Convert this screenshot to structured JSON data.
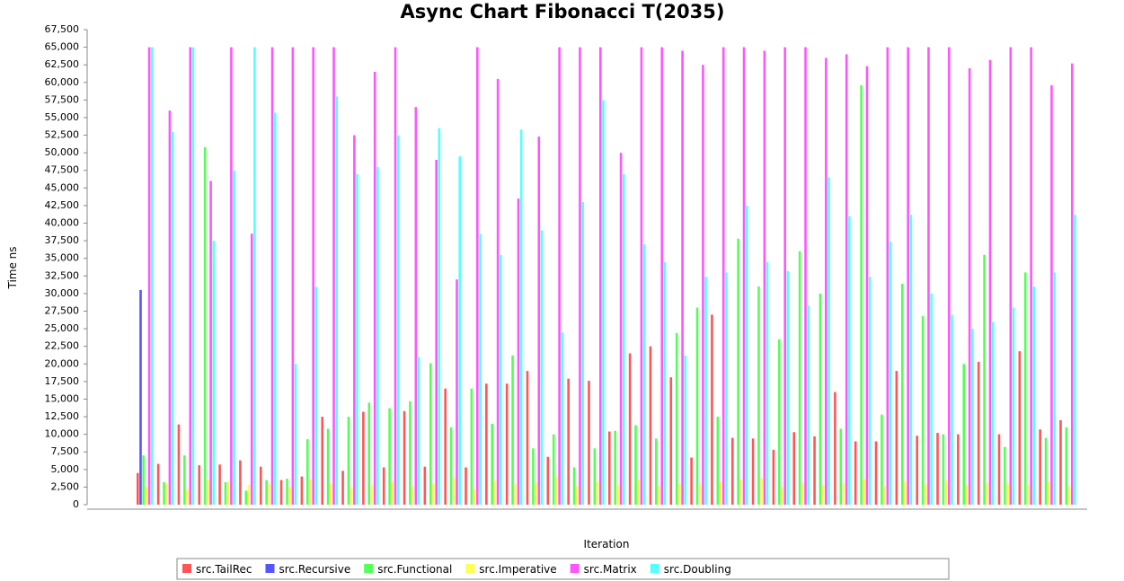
{
  "chart_data": {
    "type": "bar",
    "title": "Async Chart Fibonacci T(2035)",
    "x_label": "Iteration",
    "y_label": "Time ns",
    "categories": [
      null,
      null,
      null,
      null,
      null,
      null,
      null,
      null,
      null,
      null,
      null,
      null,
      null,
      null,
      null,
      null,
      null,
      null,
      null,
      null,
      null,
      null,
      null,
      null,
      null,
      null,
      null,
      null,
      null,
      null,
      null,
      null,
      null,
      null,
      null,
      null,
      null,
      null,
      null,
      null,
      null,
      null,
      null,
      null,
      null,
      null
    ],
    "ylim": [
      0,
      67500
    ],
    "yticks": [
      0,
      {
        "value": 2500,
        "label": "2,500"
      },
      {
        "value": 5000,
        "label": "5,000"
      },
      {
        "value": 7500,
        "label": "7,500"
      },
      {
        "value": 10000,
        "label": "10,000"
      },
      {
        "value": 12500,
        "label": "12,500"
      },
      {
        "value": 15000,
        "label": "15,000"
      },
      {
        "value": 17500,
        "label": "17,500"
      },
      {
        "value": 20000,
        "label": "20,000"
      },
      {
        "value": 22500,
        "label": "22,500"
      },
      {
        "value": 25000,
        "label": "25,000"
      },
      {
        "value": 27500,
        "label": "27,500"
      },
      {
        "value": 30000,
        "label": "30,000"
      },
      {
        "value": 32500,
        "label": "32,500"
      },
      {
        "value": 35000,
        "label": "35,000"
      },
      {
        "value": 37500,
        "label": "37,500"
      },
      {
        "value": 40000,
        "label": "40,000"
      },
      {
        "value": 42500,
        "label": "42,500"
      },
      {
        "value": 45000,
        "label": "45,000"
      },
      {
        "value": 47500,
        "label": "47,500"
      },
      {
        "value": 50000,
        "label": "50,000"
      },
      {
        "value": 52500,
        "label": "52,500"
      },
      {
        "value": 55000,
        "label": "55,000"
      },
      {
        "value": 57500,
        "label": "57,500"
      },
      {
        "value": 60000,
        "label": "60,000"
      },
      {
        "value": 62500,
        "label": "62,500"
      },
      {
        "value": 65000,
        "label": "65,000"
      },
      {
        "value": 67500,
        "label": "67,500"
      }
    ],
    "series": [
      {
        "name": "src.TailRec",
        "color": "#ff5555",
        "values": [
          4500,
          5800,
          11400,
          5600,
          5700,
          6300,
          5400,
          3500,
          4000,
          12500,
          4800,
          13200,
          5300,
          13300,
          5400,
          16500,
          5300,
          17200,
          17200,
          19000,
          6800,
          17900,
          17600,
          10400,
          21500,
          22500,
          18100,
          6700,
          27000,
          9500,
          9400,
          7800,
          10300,
          9700,
          16000,
          9000,
          9000,
          19000,
          9800,
          10200,
          10000,
          20300,
          10000,
          21800,
          10700,
          12000
        ]
      },
      {
        "name": "src.Recursive",
        "color": "#5555ff",
        "values": [
          30500,
          0,
          0,
          0,
          0,
          0,
          0,
          0,
          0,
          0,
          0,
          0,
          0,
          0,
          0,
          0,
          0,
          0,
          0,
          0,
          0,
          0,
          0,
          0,
          0,
          0,
          0,
          0,
          0,
          0,
          0,
          0,
          0,
          0,
          0,
          0,
          0,
          0,
          0,
          0,
          0,
          0,
          0,
          0,
          0,
          0
        ]
      },
      {
        "name": "src.Functional",
        "color": "#55ff55",
        "values": [
          7000,
          3200,
          7000,
          50800,
          3200,
          2000,
          3500,
          3700,
          9300,
          10800,
          12500,
          14500,
          13700,
          14700,
          20100,
          11000,
          16500,
          11500,
          21200,
          8000,
          10000,
          5300,
          8000,
          10500,
          11300,
          9400,
          24400,
          28000,
          12500,
          37800,
          31000,
          23500,
          36000,
          30000,
          10800,
          59600,
          12800,
          31400,
          26800,
          10000,
          20000,
          35500,
          8200,
          33000,
          9500,
          11000
        ]
      },
      {
        "name": "src.Imperative",
        "color": "#ffff55",
        "values": [
          2500,
          3000,
          2200,
          3500,
          3300,
          2800,
          3000,
          2500,
          3600,
          3000,
          2400,
          2800,
          3200,
          2600,
          3000,
          3800,
          2200,
          3400,
          2900,
          3100,
          4000,
          2600,
          3300,
          2800,
          3500,
          2700,
          3000,
          2900,
          3300,
          3600,
          3800,
          2500,
          3100,
          2800,
          3000,
          3700,
          2600,
          3200,
          2900,
          3400,
          2700,
          3100,
          3000,
          2800,
          3300,
          2600
        ]
      },
      {
        "name": "src.Matrix",
        "color": "#ff55ff",
        "values": [
          65000,
          56000,
          65000,
          46000,
          65000,
          38500,
          65000,
          65000,
          65000,
          65000,
          52500,
          61500,
          65000,
          56500,
          49000,
          32000,
          65000,
          60500,
          43500,
          52300,
          65000,
          65000,
          65000,
          50000,
          65000,
          65000,
          64500,
          62500,
          65000,
          65000,
          64500,
          65000,
          65000,
          63500,
          64000,
          62300,
          65000,
          65000,
          65000,
          65000,
          62000,
          63200,
          65000,
          65000,
          59600,
          62700
        ]
      },
      {
        "name": "src.Doubling",
        "color": "#55ffff",
        "values": [
          65000,
          53000,
          65000,
          37500,
          47500,
          65000,
          55700,
          20000,
          31000,
          58000,
          47000,
          48000,
          52500,
          21000,
          53500,
          49500,
          38500,
          35500,
          53300,
          39000,
          24500,
          43000,
          57500,
          47000,
          37000,
          34500,
          21200,
          32400,
          33000,
          42500,
          34500,
          33200,
          28300,
          46500,
          41000,
          32400,
          37400,
          41200,
          30000,
          27000,
          25000,
          26000,
          28000,
          31000,
          33000,
          41200
        ]
      }
    ]
  }
}
